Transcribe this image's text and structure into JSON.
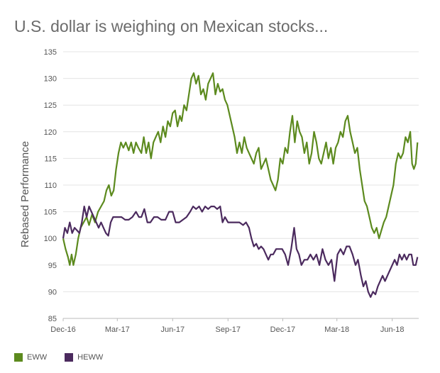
{
  "chart_data": {
    "type": "line",
    "title": "U.S. dollar is weighing on Mexican stocks...",
    "xlabel": "",
    "ylabel": "Rebased Performance",
    "ylim": [
      85,
      135
    ],
    "y_ticks": [
      85,
      90,
      95,
      100,
      105,
      110,
      115,
      120,
      125,
      130,
      135
    ],
    "x_ticks": [
      "Dec-16",
      "Mar-17",
      "Jun-17",
      "Sep-17",
      "Dec-17",
      "Mar-18",
      "Jun-18"
    ],
    "x_start": "2016-12-01",
    "x_end": "2018-07-15",
    "grid": "horizontal",
    "legend_position": "bottom-left",
    "series": [
      {
        "name": "EWW",
        "color": "#5c8a1e",
        "points": [
          [
            "2016-12-01",
            100
          ],
          [
            "2016-12-05",
            98
          ],
          [
            "2016-12-09",
            96.5
          ],
          [
            "2016-12-12",
            95
          ],
          [
            "2016-12-15",
            97
          ],
          [
            "2016-12-18",
            95
          ],
          [
            "2016-12-22",
            97
          ],
          [
            "2016-12-26",
            100
          ],
          [
            "2016-12-30",
            102
          ],
          [
            "2017-01-04",
            103
          ],
          [
            "2017-01-09",
            104
          ],
          [
            "2017-01-13",
            102.5
          ],
          [
            "2017-01-18",
            104.5
          ],
          [
            "2017-01-23",
            103
          ],
          [
            "2017-01-28",
            105
          ],
          [
            "2017-02-02",
            106
          ],
          [
            "2017-02-07",
            107
          ],
          [
            "2017-02-11",
            109
          ],
          [
            "2017-02-15",
            110
          ],
          [
            "2017-02-19",
            108
          ],
          [
            "2017-02-23",
            109
          ],
          [
            "2017-02-27",
            113
          ],
          [
            "2017-03-03",
            116
          ],
          [
            "2017-03-07",
            118
          ],
          [
            "2017-03-11",
            117
          ],
          [
            "2017-03-15",
            118
          ],
          [
            "2017-03-20",
            116.5
          ],
          [
            "2017-03-24",
            118
          ],
          [
            "2017-03-28",
            116
          ],
          [
            "2017-04-01",
            118
          ],
          [
            "2017-04-05",
            117
          ],
          [
            "2017-04-10",
            116
          ],
          [
            "2017-04-14",
            119
          ],
          [
            "2017-04-18",
            116
          ],
          [
            "2017-04-22",
            118
          ],
          [
            "2017-04-26",
            115
          ],
          [
            "2017-04-30",
            118
          ],
          [
            "2017-05-04",
            119
          ],
          [
            "2017-05-08",
            120
          ],
          [
            "2017-05-12",
            118
          ],
          [
            "2017-05-16",
            121
          ],
          [
            "2017-05-20",
            119
          ],
          [
            "2017-05-24",
            122
          ],
          [
            "2017-05-28",
            121
          ],
          [
            "2017-06-01",
            123.5
          ],
          [
            "2017-06-05",
            124
          ],
          [
            "2017-06-09",
            121
          ],
          [
            "2017-06-13",
            123
          ],
          [
            "2017-06-16",
            122
          ],
          [
            "2017-06-20",
            125
          ],
          [
            "2017-06-24",
            124
          ],
          [
            "2017-06-28",
            127
          ],
          [
            "2017-07-02",
            130
          ],
          [
            "2017-07-06",
            131
          ],
          [
            "2017-07-10",
            129
          ],
          [
            "2017-07-14",
            130.5
          ],
          [
            "2017-07-18",
            127
          ],
          [
            "2017-07-22",
            128
          ],
          [
            "2017-07-26",
            126
          ],
          [
            "2017-07-30",
            129
          ],
          [
            "2017-08-03",
            130
          ],
          [
            "2017-08-07",
            131
          ],
          [
            "2017-08-11",
            127
          ],
          [
            "2017-08-15",
            129
          ],
          [
            "2017-08-19",
            127.5
          ],
          [
            "2017-08-23",
            128
          ],
          [
            "2017-08-27",
            126
          ],
          [
            "2017-08-31",
            125
          ],
          [
            "2017-09-04",
            123
          ],
          [
            "2017-09-08",
            121
          ],
          [
            "2017-09-12",
            119
          ],
          [
            "2017-09-16",
            116
          ],
          [
            "2017-09-20",
            118
          ],
          [
            "2017-09-24",
            116
          ],
          [
            "2017-09-28",
            119
          ],
          [
            "2017-10-02",
            117
          ],
          [
            "2017-10-06",
            116
          ],
          [
            "2017-10-10",
            115
          ],
          [
            "2017-10-14",
            114
          ],
          [
            "2017-10-18",
            116
          ],
          [
            "2017-10-22",
            117
          ],
          [
            "2017-10-26",
            113
          ],
          [
            "2017-10-30",
            114
          ],
          [
            "2017-11-03",
            115
          ],
          [
            "2017-11-07",
            113
          ],
          [
            "2017-11-11",
            111
          ],
          [
            "2017-11-15",
            110
          ],
          [
            "2017-11-19",
            109
          ],
          [
            "2017-11-23",
            111
          ],
          [
            "2017-11-27",
            115
          ],
          [
            "2017-12-01",
            114
          ],
          [
            "2017-12-05",
            117
          ],
          [
            "2017-12-09",
            116
          ],
          [
            "2017-12-13",
            120
          ],
          [
            "2017-12-17",
            123
          ],
          [
            "2017-12-21",
            118
          ],
          [
            "2017-12-25",
            122
          ],
          [
            "2017-12-29",
            120
          ],
          [
            "2018-01-02",
            119
          ],
          [
            "2018-01-06",
            116
          ],
          [
            "2018-01-10",
            118
          ],
          [
            "2018-01-14",
            114
          ],
          [
            "2018-01-18",
            116
          ],
          [
            "2018-01-22",
            120
          ],
          [
            "2018-01-26",
            118
          ],
          [
            "2018-01-30",
            115
          ],
          [
            "2018-02-03",
            114
          ],
          [
            "2018-02-07",
            116
          ],
          [
            "2018-02-11",
            118
          ],
          [
            "2018-02-15",
            115
          ],
          [
            "2018-02-19",
            117
          ],
          [
            "2018-02-23",
            114
          ],
          [
            "2018-02-27",
            117
          ],
          [
            "2018-03-03",
            118
          ],
          [
            "2018-03-07",
            120
          ],
          [
            "2018-03-11",
            119
          ],
          [
            "2018-03-15",
            122
          ],
          [
            "2018-03-19",
            123
          ],
          [
            "2018-03-23",
            120
          ],
          [
            "2018-03-27",
            118
          ],
          [
            "2018-03-31",
            116
          ],
          [
            "2018-04-04",
            117
          ],
          [
            "2018-04-08",
            113
          ],
          [
            "2018-04-12",
            110
          ],
          [
            "2018-04-16",
            107
          ],
          [
            "2018-04-20",
            106
          ],
          [
            "2018-04-24",
            104
          ],
          [
            "2018-04-28",
            102
          ],
          [
            "2018-05-02",
            101
          ],
          [
            "2018-05-06",
            102
          ],
          [
            "2018-05-10",
            100
          ],
          [
            "2018-05-14",
            101.5
          ],
          [
            "2018-05-18",
            103
          ],
          [
            "2018-05-22",
            104
          ],
          [
            "2018-05-26",
            106
          ],
          [
            "2018-05-30",
            108
          ],
          [
            "2018-06-03",
            110
          ],
          [
            "2018-06-07",
            114
          ],
          [
            "2018-06-11",
            116
          ],
          [
            "2018-06-15",
            115
          ],
          [
            "2018-06-19",
            116
          ],
          [
            "2018-06-23",
            119
          ],
          [
            "2018-06-27",
            118
          ],
          [
            "2018-07-01",
            120
          ],
          [
            "2018-07-04",
            114
          ],
          [
            "2018-07-07",
            113
          ],
          [
            "2018-07-10",
            114
          ],
          [
            "2018-07-13",
            118
          ]
        ]
      },
      {
        "name": "HEWW",
        "color": "#4b2a5e",
        "points": [
          [
            "2016-12-01",
            100
          ],
          [
            "2016-12-04",
            102
          ],
          [
            "2016-12-08",
            101
          ],
          [
            "2016-12-12",
            103
          ],
          [
            "2016-12-16",
            101
          ],
          [
            "2016-12-20",
            102
          ],
          [
            "2016-12-24",
            101.5
          ],
          [
            "2016-12-28",
            101
          ],
          [
            "2017-01-01",
            103
          ],
          [
            "2017-01-05",
            106
          ],
          [
            "2017-01-09",
            104
          ],
          [
            "2017-01-13",
            106
          ],
          [
            "2017-01-17",
            105
          ],
          [
            "2017-01-21",
            104
          ],
          [
            "2017-01-25",
            103
          ],
          [
            "2017-01-29",
            102
          ],
          [
            "2017-02-02",
            103
          ],
          [
            "2017-02-06",
            102
          ],
          [
            "2017-02-10",
            101
          ],
          [
            "2017-02-14",
            100.5
          ],
          [
            "2017-02-18",
            103
          ],
          [
            "2017-02-22",
            104
          ],
          [
            "2017-02-26",
            104
          ],
          [
            "2017-03-02",
            104
          ],
          [
            "2017-03-08",
            104
          ],
          [
            "2017-03-14",
            103.5
          ],
          [
            "2017-03-20",
            103.5
          ],
          [
            "2017-03-26",
            104
          ],
          [
            "2017-04-01",
            105
          ],
          [
            "2017-04-06",
            104
          ],
          [
            "2017-04-10",
            104
          ],
          [
            "2017-04-15",
            105.5
          ],
          [
            "2017-04-20",
            103
          ],
          [
            "2017-04-25",
            103
          ],
          [
            "2017-05-01",
            104
          ],
          [
            "2017-05-07",
            104
          ],
          [
            "2017-05-13",
            103.5
          ],
          [
            "2017-05-20",
            103.5
          ],
          [
            "2017-05-26",
            105
          ],
          [
            "2017-06-01",
            105
          ],
          [
            "2017-06-06",
            103
          ],
          [
            "2017-06-12",
            103
          ],
          [
            "2017-06-18",
            103.5
          ],
          [
            "2017-06-24",
            104
          ],
          [
            "2017-06-30",
            105
          ],
          [
            "2017-07-05",
            106
          ],
          [
            "2017-07-10",
            105.5
          ],
          [
            "2017-07-15",
            106
          ],
          [
            "2017-07-20",
            105
          ],
          [
            "2017-07-25",
            106
          ],
          [
            "2017-07-30",
            105.5
          ],
          [
            "2017-08-04",
            106
          ],
          [
            "2017-08-09",
            106
          ],
          [
            "2017-08-14",
            105.5
          ],
          [
            "2017-08-19",
            106
          ],
          [
            "2017-08-23",
            103
          ],
          [
            "2017-08-27",
            104
          ],
          [
            "2017-09-01",
            103
          ],
          [
            "2017-09-08",
            103
          ],
          [
            "2017-09-15",
            103
          ],
          [
            "2017-09-20",
            103
          ],
          [
            "2017-09-26",
            102.5
          ],
          [
            "2017-10-01",
            103
          ],
          [
            "2017-10-06",
            102
          ],
          [
            "2017-10-10",
            100
          ],
          [
            "2017-10-14",
            98.5
          ],
          [
            "2017-10-18",
            99
          ],
          [
            "2017-10-22",
            98
          ],
          [
            "2017-10-26",
            98.5
          ],
          [
            "2017-10-30",
            98
          ],
          [
            "2017-11-03",
            97
          ],
          [
            "2017-11-07",
            96
          ],
          [
            "2017-11-11",
            97
          ],
          [
            "2017-11-15",
            97
          ],
          [
            "2017-11-20",
            98
          ],
          [
            "2017-11-25",
            98
          ],
          [
            "2017-11-30",
            98
          ],
          [
            "2017-12-05",
            97
          ],
          [
            "2017-12-10",
            95
          ],
          [
            "2017-12-15",
            98
          ],
          [
            "2017-12-20",
            102
          ],
          [
            "2017-12-24",
            98
          ],
          [
            "2017-12-28",
            97
          ],
          [
            "2018-01-01",
            95
          ],
          [
            "2018-01-06",
            96
          ],
          [
            "2018-01-11",
            96
          ],
          [
            "2018-01-16",
            97
          ],
          [
            "2018-01-21",
            96
          ],
          [
            "2018-01-26",
            97
          ],
          [
            "2018-01-31",
            95
          ],
          [
            "2018-02-05",
            98
          ],
          [
            "2018-02-10",
            96
          ],
          [
            "2018-02-15",
            95
          ],
          [
            "2018-02-20",
            96
          ],
          [
            "2018-02-25",
            92
          ],
          [
            "2018-03-02",
            97
          ],
          [
            "2018-03-07",
            98
          ],
          [
            "2018-03-12",
            97
          ],
          [
            "2018-03-17",
            98.5
          ],
          [
            "2018-03-22",
            98.5
          ],
          [
            "2018-03-27",
            97
          ],
          [
            "2018-04-01",
            95
          ],
          [
            "2018-04-05",
            96
          ],
          [
            "2018-04-10",
            93
          ],
          [
            "2018-04-14",
            91
          ],
          [
            "2018-04-18",
            92
          ],
          [
            "2018-04-22",
            90
          ],
          [
            "2018-04-26",
            89
          ],
          [
            "2018-04-30",
            90
          ],
          [
            "2018-05-04",
            89.5
          ],
          [
            "2018-05-08",
            91
          ],
          [
            "2018-05-12",
            92
          ],
          [
            "2018-05-16",
            93
          ],
          [
            "2018-05-20",
            92
          ],
          [
            "2018-05-24",
            93
          ],
          [
            "2018-05-28",
            94
          ],
          [
            "2018-06-01",
            95
          ],
          [
            "2018-06-05",
            96
          ],
          [
            "2018-06-09",
            95
          ],
          [
            "2018-06-13",
            97
          ],
          [
            "2018-06-17",
            96
          ],
          [
            "2018-06-21",
            97
          ],
          [
            "2018-06-25",
            96
          ],
          [
            "2018-06-29",
            97
          ],
          [
            "2018-07-03",
            97
          ],
          [
            "2018-07-06",
            95
          ],
          [
            "2018-07-10",
            95
          ],
          [
            "2018-07-13",
            96.5
          ]
        ]
      }
    ]
  }
}
